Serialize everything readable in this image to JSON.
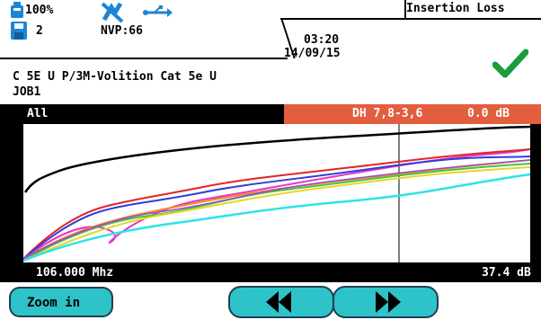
{
  "status": {
    "battery_label": "100%",
    "cable_count": "2",
    "nvp_label": "NVP:66",
    "time": "03:20",
    "date": "14/09/15",
    "title": "Insertion Loss"
  },
  "test": {
    "cable_name": "C 5E U P/3M-Volition Cat 5e U",
    "job": "JOB1",
    "result": "pass"
  },
  "plot": {
    "pair_selector": "All",
    "worst_pair": "DH 7,8-3,6",
    "margin": "0.0 dB",
    "cursor_frequency": "106.000 Mhz",
    "cursor_value": "37.4 dB"
  },
  "buttons": {
    "zoom_label": "Zoom in",
    "prev_icon": "rewind-icon",
    "next_icon": "fast-forward-icon"
  },
  "colors": {
    "accent": "#e35d3f",
    "button": "#2ec3c9",
    "pass": "#1a9e3a"
  }
}
